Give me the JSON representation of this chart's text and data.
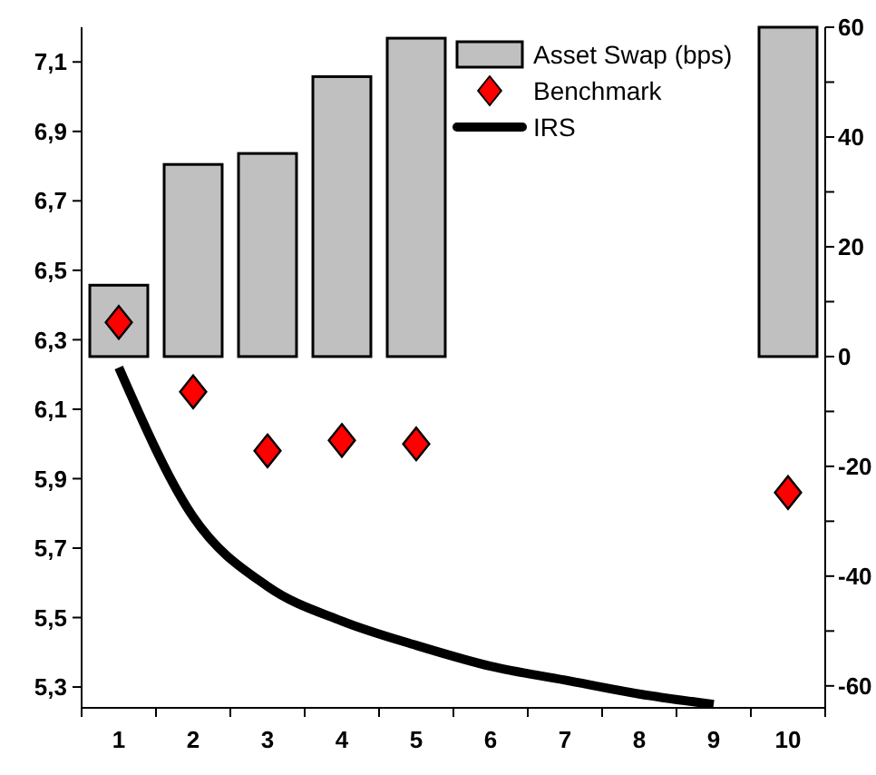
{
  "chart_data": {
    "type": "bar",
    "categories": [
      "1",
      "2",
      "3",
      "4",
      "5",
      "6",
      "7",
      "8",
      "9",
      "10"
    ],
    "series": [
      {
        "name": "Asset Swap (bps)",
        "axis": "y2",
        "color": "#c0c0c0",
        "values": [
          13,
          35,
          37,
          51,
          58,
          null,
          null,
          null,
          null,
          60
        ]
      },
      {
        "name": "Benchmark",
        "type": "scatter",
        "marker": "diamond",
        "color": "#ff0000",
        "values": [
          6.35,
          6.15,
          5.98,
          6.01,
          6.0,
          null,
          null,
          null,
          null,
          5.86
        ]
      },
      {
        "name": "IRS",
        "type": "line",
        "line_style": "solid",
        "color": "#000000",
        "values": [
          6.22,
          5.79,
          5.59,
          5.49,
          5.42,
          5.36,
          5.32,
          5.28,
          5.25,
          null
        ]
      }
    ],
    "ylim": [
      5.24,
      7.2
    ],
    "yticks": [
      {
        "value": 5.3,
        "label": "5,3"
      },
      {
        "value": 5.5,
        "label": "5,5"
      },
      {
        "value": 5.7,
        "label": "5,7"
      },
      {
        "value": 5.9,
        "label": "5,9"
      },
      {
        "value": 6.1,
        "label": "6,1"
      },
      {
        "value": 6.3,
        "label": "6,3"
      },
      {
        "value": 6.5,
        "label": "6,5"
      },
      {
        "value": 6.7,
        "label": "6,7"
      },
      {
        "value": 6.9,
        "label": "6,9"
      },
      {
        "value": 7.1,
        "label": "7,1"
      }
    ],
    "y2lim": [
      -64,
      60
    ],
    "y2ticks": [
      -60,
      {
        "value": -50,
        "label": null
      },
      -40,
      {
        "value": -30,
        "label": null
      },
      -20,
      {
        "value": -10,
        "label": null
      },
      0,
      {
        "value": 10,
        "label": null
      },
      20,
      {
        "value": 30,
        "label": null
      },
      40,
      {
        "value": 50,
        "label": null
      },
      60
    ],
    "legend": "top right",
    "grid": false
  }
}
